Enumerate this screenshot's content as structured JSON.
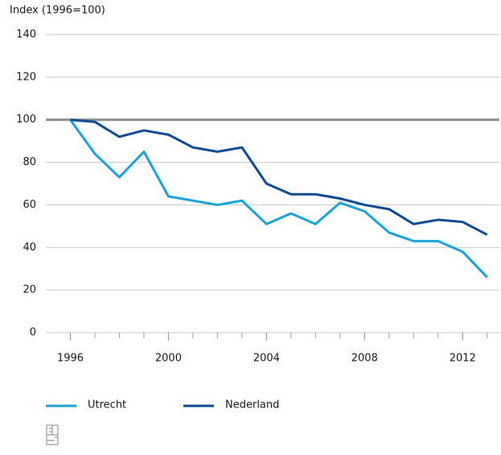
{
  "chart_data": {
    "type": "line",
    "y_label": "Index (1996=100)",
    "x": [
      1996,
      1997,
      1998,
      1999,
      2000,
      2001,
      2002,
      2003,
      2004,
      2005,
      2006,
      2007,
      2008,
      2009,
      2010,
      2011,
      2012,
      2013
    ],
    "series": [
      {
        "name": "Utrecht",
        "color": "#1aa3d9",
        "values": [
          100,
          84,
          73,
          85,
          64,
          62,
          60,
          62,
          51,
          56,
          51,
          61,
          57,
          47,
          43,
          43,
          38,
          26
        ]
      },
      {
        "name": "Nederland",
        "color": "#0b4a94",
        "values": [
          100,
          99,
          92,
          95,
          93,
          87,
          85,
          87,
          70,
          65,
          65,
          63,
          60,
          58,
          51,
          53,
          52,
          46
        ]
      }
    ],
    "xlim": [
      1995,
      2013.5
    ],
    "xticks": [
      1996,
      2000,
      2004,
      2008,
      2012
    ],
    "ylim": [
      0,
      140
    ],
    "yticks": [
      0,
      20,
      40,
      60,
      80,
      100,
      120,
      140
    ],
    "reference_line": 100,
    "reference_color": "#8c8c8c",
    "grid": true,
    "legend": "bottom"
  }
}
